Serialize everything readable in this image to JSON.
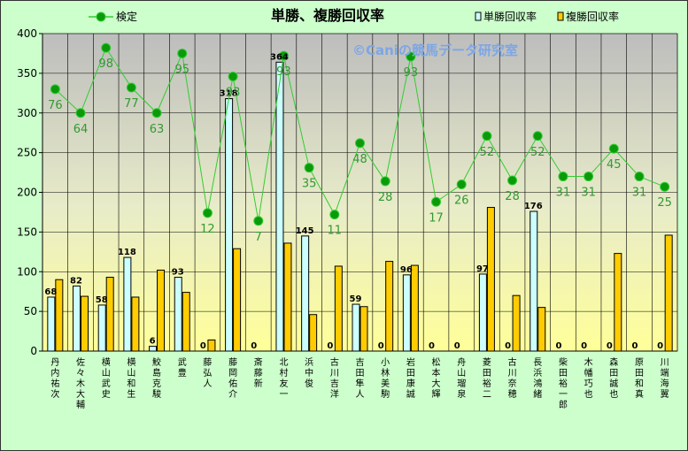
{
  "chart_data": {
    "type": "bar",
    "title": "単勝、複勝回収率",
    "watermark": "©Caniの競馬データ研究室",
    "ylim": [
      0,
      400
    ],
    "yticks": [
      0,
      50,
      100,
      150,
      200,
      250,
      300,
      350,
      400
    ],
    "categories": [
      "丹内 祐次",
      "佐々木 大輔",
      "横山 武史",
      "横山 和生",
      "鮫島 克駿",
      "武 豊",
      "藤 弘人",
      "藤岡 佑介",
      "斎藤 新",
      "北村 友一",
      "浜中 俊",
      "古川 吉洋",
      "吉田 隼人",
      "小林 美駒",
      "岩田 康誠",
      "松本 大輝",
      "舟山 瑠泉",
      "菱田 裕二",
      "古川 奈穂",
      "長浜 鴻緒",
      "柴田 裕一郎",
      "木幡 巧也",
      "森田 誠也",
      "原田 和真",
      "川端 海翼"
    ],
    "legend": {
      "line": "検定",
      "bar1": "単勝回収率",
      "bar2": "複勝回収率"
    },
    "series": [
      {
        "name": "単勝回収率",
        "values": [
          68,
          82,
          58,
          118,
          6,
          93,
          0,
          318,
          0,
          364,
          145,
          0,
          59,
          0,
          96,
          0,
          0,
          97,
          0,
          176,
          0,
          0,
          0,
          0,
          0
        ],
        "color": "#ccffff"
      },
      {
        "name": "複勝回収率",
        "values": [
          90,
          69,
          93,
          68,
          102,
          74,
          14,
          129,
          0,
          136,
          46,
          107,
          56,
          113,
          108,
          0,
          0,
          181,
          70,
          55,
          0,
          0,
          123,
          0,
          146
        ],
        "color": "#ffcc00"
      },
      {
        "name": "検定",
        "values": [
          330,
          300,
          382,
          332,
          300,
          375,
          174,
          346,
          164,
          372,
          231,
          172,
          262,
          214,
          371,
          188,
          210,
          271,
          215,
          271,
          220,
          220,
          255,
          220,
          207
        ],
        "labels": [
          76,
          64,
          98,
          77,
          63,
          95,
          12,
          93,
          7,
          93,
          35,
          11,
          48,
          28,
          93,
          17,
          26,
          52,
          28,
          52,
          31,
          31,
          45,
          31,
          25
        ],
        "color": "#33cc33"
      }
    ]
  }
}
